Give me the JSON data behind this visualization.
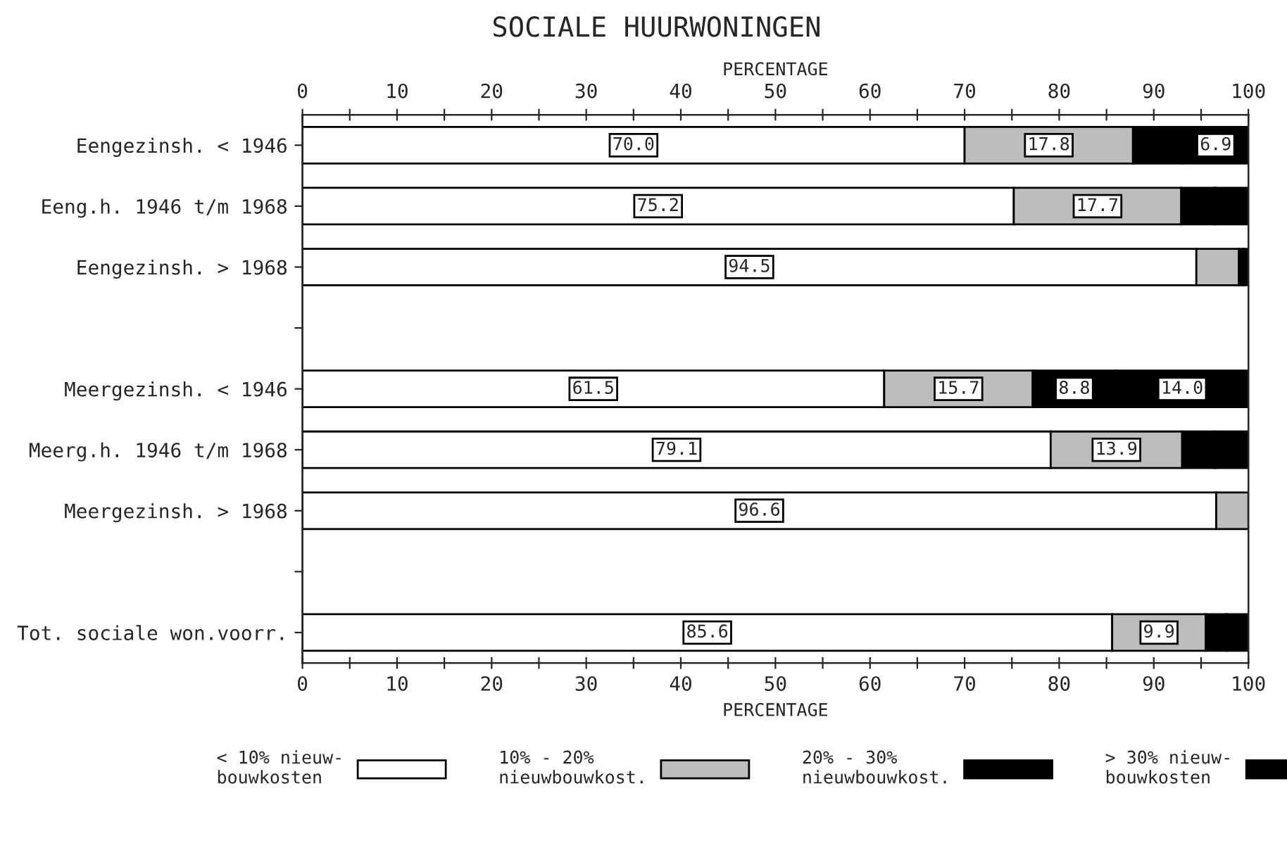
{
  "chart_data": {
    "type": "bar",
    "orientation": "horizontal",
    "stacked": true,
    "title": "SOCIALE HUURWONINGEN",
    "xlabel": "PERCENTAGE",
    "x2label": "PERCENTAGE",
    "categories": [
      "Eengezinsh. < 1946",
      "Eeng.h. 1946 t/m 1968",
      "Eengezinsh. > 1968",
      null,
      "Meergezinsh. < 1946",
      "Meerg.h. 1946 t/m 1968",
      "Meergezinsh. > 1968",
      null,
      "Tot. sociale won.voorr."
    ],
    "xlim": [
      0,
      100
    ],
    "xticks": [
      0,
      {
        "value": 5,
        "label": null
      },
      10,
      {
        "value": 15,
        "label": null
      },
      20,
      {
        "value": 25,
        "label": null
      },
      30,
      {
        "value": 35,
        "label": null
      },
      40,
      {
        "value": 45,
        "label": null
      },
      50,
      {
        "value": 55,
        "label": null
      },
      60,
      {
        "value": 65,
        "label": null
      },
      70,
      {
        "value": 75,
        "label": null
      },
      80,
      {
        "value": 85,
        "label": null
      },
      90,
      {
        "value": 95,
        "label": null
      },
      100
    ],
    "x2lim": [
      0,
      100
    ],
    "x2ticks": [
      0,
      {
        "value": 5,
        "label": null
      },
      10,
      {
        "value": 15,
        "label": null
      },
      20,
      {
        "value": 25,
        "label": null
      },
      30,
      {
        "value": 35,
        "label": null
      },
      40,
      {
        "value": 45,
        "label": null
      },
      50,
      {
        "value": 55,
        "label": null
      },
      60,
      {
        "value": 65,
        "label": null
      },
      70,
      {
        "value": 75,
        "label": null
      },
      80,
      {
        "value": 85,
        "label": null
      },
      90,
      {
        "value": 95,
        "label": null
      },
      100
    ],
    "series": [
      {
        "name": "< 10% nieuw-\nbouwkosten",
        "color": "#ffffff",
        "values": [
          70.0,
          75.2,
          94.5,
          null,
          61.5,
          79.1,
          96.6,
          null,
          85.6
        ],
        "value_labels": [
          "70.0",
          "75.2",
          "94.5",
          null,
          "61.5",
          "79.1",
          "96.6",
          null,
          "85.6"
        ]
      },
      {
        "name": "10% - 20%\nnieuwbouwkost.",
        "color": "#bdbdbd",
        "values": [
          17.8,
          17.7,
          4.5,
          null,
          15.7,
          13.9,
          3.4,
          null,
          9.9
        ],
        "value_labels": [
          "17.8",
          "17.7",
          null,
          null,
          "15.7",
          "13.9",
          null,
          null,
          "9.9"
        ]
      },
      {
        "name": "20% - 30%\nnieuwbouwkost.",
        "color": "#000000",
        "values": [
          5.3,
          3.6,
          0.5,
          null,
          8.8,
          3.5,
          null,
          null,
          2.2
        ],
        "value_labels": [
          null,
          null,
          null,
          null,
          "8.8",
          null,
          null,
          null,
          null
        ]
      },
      {
        "name": "> 30% nieuw-\nbouwkosten",
        "color": "#000000",
        "values": [
          6.9,
          3.5,
          0.5,
          null,
          14.0,
          3.5,
          null,
          null,
          2.3
        ],
        "value_labels": [
          "6.9",
          null,
          null,
          null,
          "14.0",
          null,
          null,
          null,
          null
        ]
      }
    ],
    "legend": "bottom",
    "grid": false
  }
}
